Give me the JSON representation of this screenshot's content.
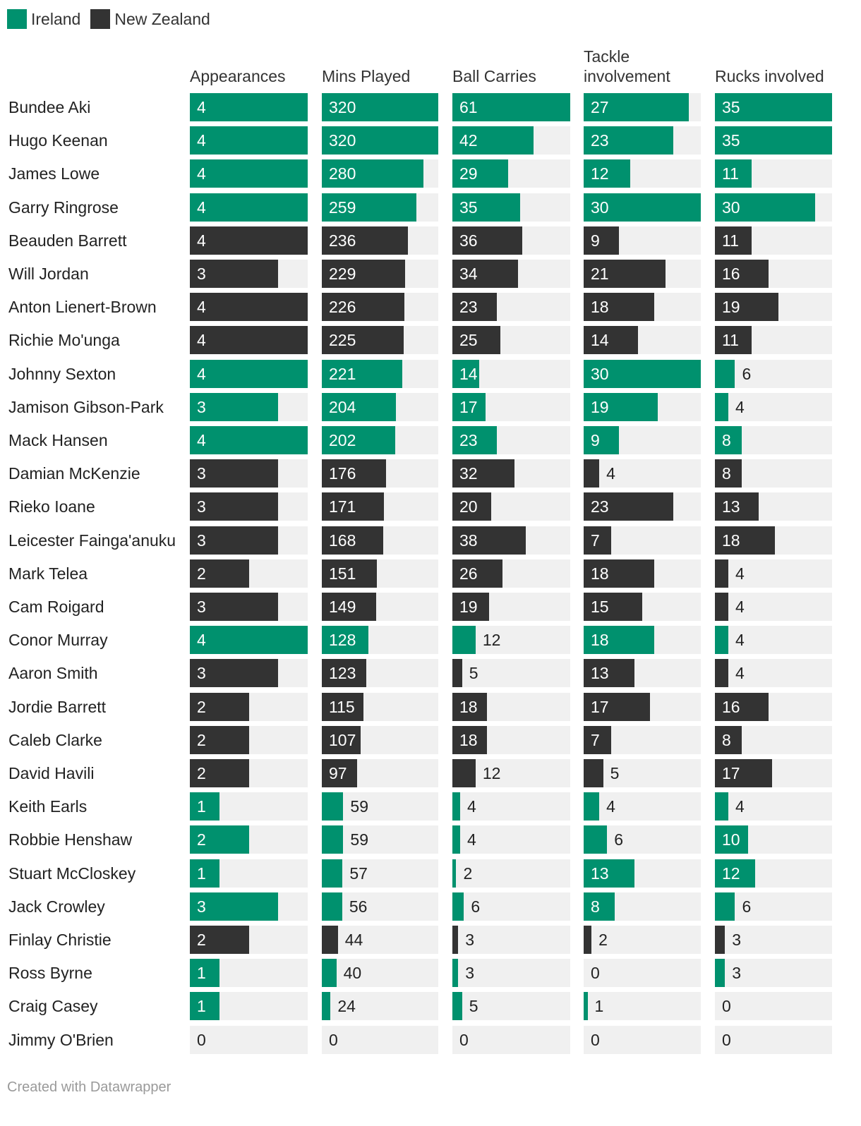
{
  "legend": [
    {
      "name": "Ireland",
      "color": "#00916e"
    },
    {
      "name": "New Zealand",
      "color": "#333333"
    }
  ],
  "footer": "Created with Datawrapper",
  "chart_data": {
    "type": "bar",
    "orientation": "horizontal",
    "layout": "small-multiples",
    "colors": {
      "Ireland": "#00916e",
      "New Zealand": "#333333",
      "track": "#f0f0f0"
    },
    "columns": [
      {
        "key": "appearances",
        "label": "Appearances",
        "max": 4
      },
      {
        "key": "mins",
        "label": "Mins Played",
        "max": 320
      },
      {
        "key": "carries",
        "label": "Ball Carries",
        "max": 61
      },
      {
        "key": "tackles",
        "label": "Tackle involvement",
        "max": 30
      },
      {
        "key": "rucks",
        "label": "Rucks involved",
        "max": 35
      }
    ],
    "rows": [
      {
        "player": "Bundee Aki",
        "team": "Ireland",
        "values": [
          4,
          320,
          61,
          27,
          35
        ]
      },
      {
        "player": "Hugo Keenan",
        "team": "Ireland",
        "values": [
          4,
          320,
          42,
          23,
          35
        ]
      },
      {
        "player": "James Lowe",
        "team": "Ireland",
        "values": [
          4,
          280,
          29,
          12,
          11
        ]
      },
      {
        "player": "Garry Ringrose",
        "team": "Ireland",
        "values": [
          4,
          259,
          35,
          30,
          30
        ]
      },
      {
        "player": "Beauden Barrett",
        "team": "New Zealand",
        "values": [
          4,
          236,
          36,
          9,
          11
        ]
      },
      {
        "player": "Will Jordan",
        "team": "New Zealand",
        "values": [
          3,
          229,
          34,
          21,
          16
        ]
      },
      {
        "player": "Anton Lienert-Brown",
        "team": "New Zealand",
        "values": [
          4,
          226,
          23,
          18,
          19
        ]
      },
      {
        "player": "Richie Mo'unga",
        "team": "New Zealand",
        "values": [
          4,
          225,
          25,
          14,
          11
        ]
      },
      {
        "player": "Johnny Sexton",
        "team": "Ireland",
        "values": [
          4,
          221,
          14,
          30,
          6
        ]
      },
      {
        "player": "Jamison Gibson-Park",
        "team": "Ireland",
        "values": [
          3,
          204,
          17,
          19,
          4
        ]
      },
      {
        "player": "Mack Hansen",
        "team": "Ireland",
        "values": [
          4,
          202,
          23,
          9,
          8
        ]
      },
      {
        "player": "Damian McKenzie",
        "team": "New Zealand",
        "values": [
          3,
          176,
          32,
          4,
          8
        ]
      },
      {
        "player": "Rieko Ioane",
        "team": "New Zealand",
        "values": [
          3,
          171,
          20,
          23,
          13
        ]
      },
      {
        "player": "Leicester Fainga'anuku",
        "team": "New Zealand",
        "values": [
          3,
          168,
          38,
          7,
          18
        ]
      },
      {
        "player": "Mark Telea",
        "team": "New Zealand",
        "values": [
          2,
          151,
          26,
          18,
          4
        ]
      },
      {
        "player": "Cam Roigard",
        "team": "New Zealand",
        "values": [
          3,
          149,
          19,
          15,
          4
        ]
      },
      {
        "player": "Conor Murray",
        "team": "Ireland",
        "values": [
          4,
          128,
          12,
          18,
          4
        ]
      },
      {
        "player": "Aaron Smith",
        "team": "New Zealand",
        "values": [
          3,
          123,
          5,
          13,
          4
        ]
      },
      {
        "player": "Jordie Barrett",
        "team": "New Zealand",
        "values": [
          2,
          115,
          18,
          17,
          16
        ]
      },
      {
        "player": "Caleb Clarke",
        "team": "New Zealand",
        "values": [
          2,
          107,
          18,
          7,
          8
        ]
      },
      {
        "player": "David Havili",
        "team": "New Zealand",
        "values": [
          2,
          97,
          12,
          5,
          17
        ]
      },
      {
        "player": "Keith Earls",
        "team": "Ireland",
        "values": [
          1,
          59,
          4,
          4,
          4
        ]
      },
      {
        "player": "Robbie Henshaw",
        "team": "Ireland",
        "values": [
          2,
          59,
          4,
          6,
          10
        ]
      },
      {
        "player": "Stuart McCloskey",
        "team": "Ireland",
        "values": [
          1,
          57,
          2,
          13,
          12
        ]
      },
      {
        "player": "Jack Crowley",
        "team": "Ireland",
        "values": [
          3,
          56,
          6,
          8,
          6
        ]
      },
      {
        "player": "Finlay Christie",
        "team": "New Zealand",
        "values": [
          2,
          44,
          3,
          2,
          3
        ]
      },
      {
        "player": "Ross Byrne",
        "team": "Ireland",
        "values": [
          1,
          40,
          3,
          0,
          3
        ]
      },
      {
        "player": "Craig Casey",
        "team": "Ireland",
        "values": [
          1,
          24,
          5,
          1,
          0
        ]
      },
      {
        "player": "Jimmy O'Brien",
        "team": "Ireland",
        "values": [
          0,
          0,
          0,
          0,
          0
        ]
      }
    ]
  }
}
